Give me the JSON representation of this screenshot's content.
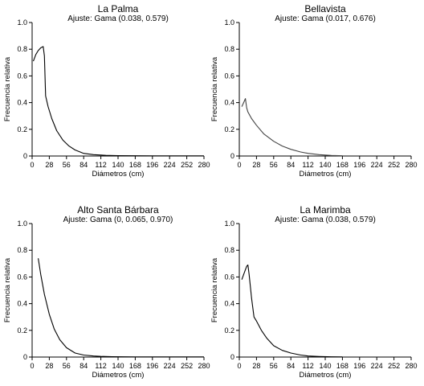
{
  "chart_data": [
    {
      "type": "line",
      "title": "La Palma",
      "subtitle": "Ajuste: Gama (0.038, 0.579)",
      "xlabel": "Diámetros (cm)",
      "ylabel": "Frecuencia relativa",
      "xlim": [
        0,
        280
      ],
      "ylim": [
        0,
        1.0
      ],
      "xticks": [
        0,
        28,
        56,
        84,
        112,
        140,
        168,
        196,
        224,
        252,
        280
      ],
      "yticks": [
        0,
        0.2,
        0.4,
        0.6,
        0.8,
        1.0
      ],
      "ytick_labels": [
        "0",
        "0.2",
        "0.4",
        "0.6",
        "0.8",
        "1.0"
      ],
      "grid": false,
      "series": [
        {
          "color": "#000000",
          "x": [
            2,
            6,
            10,
            14,
            18,
            20,
            22,
            26,
            32,
            40,
            50,
            60,
            70,
            84,
            100,
            120,
            140,
            168,
            200,
            240,
            280
          ],
          "y": [
            0.71,
            0.76,
            0.79,
            0.81,
            0.82,
            0.75,
            0.45,
            0.37,
            0.28,
            0.19,
            0.12,
            0.075,
            0.045,
            0.02,
            0.01,
            0.005,
            0.003,
            0.002,
            0.001,
            0.001,
            0.001
          ]
        }
      ]
    },
    {
      "type": "line",
      "title": "Bellavista",
      "subtitle": "Ajuste: Gama (0.017, 0.676)",
      "xlabel": "Diámetros (cm)",
      "ylabel": "Frecuencia relativa",
      "xlim": [
        0,
        280
      ],
      "ylim": [
        0,
        1.0
      ],
      "xticks": [
        0,
        28,
        56,
        84,
        112,
        140,
        168,
        196,
        224,
        252,
        280
      ],
      "yticks": [
        0,
        0.2,
        0.4,
        0.6,
        0.8,
        1.0
      ],
      "ytick_labels": [
        "0",
        "0.2",
        "0.4",
        "0.6",
        "0.8",
        "1.0"
      ],
      "grid": false,
      "series": [
        {
          "color": "#444444",
          "x": [
            4,
            7,
            10,
            12,
            14,
            20,
            28,
            40,
            56,
            70,
            84,
            100,
            112,
            130,
            150,
            168
          ],
          "y": [
            0.37,
            0.4,
            0.43,
            0.36,
            0.33,
            0.28,
            0.23,
            0.165,
            0.11,
            0.075,
            0.05,
            0.03,
            0.02,
            0.01,
            0.004,
            0.002
          ]
        }
      ]
    },
    {
      "type": "line",
      "title": "Alto Santa Bárbara",
      "subtitle": "Ajuste: Gama (0, 0.065, 0.970)",
      "xlabel": "Diámetros (cm)",
      "ylabel": "Frecuencia relativa",
      "xlim": [
        0,
        280
      ],
      "ylim": [
        0,
        1.0
      ],
      "xticks": [
        0,
        28,
        56,
        84,
        112,
        140,
        168,
        196,
        224,
        252,
        280
      ],
      "yticks": [
        0,
        0.2,
        0.4,
        0.6,
        0.8,
        1.0
      ],
      "ytick_labels": [
        "0",
        "0.2",
        "0.4",
        "0.6",
        "0.8",
        "1.0"
      ],
      "grid": false,
      "series": [
        {
          "color": "#000000",
          "x": [
            10,
            14,
            20,
            28,
            36,
            45,
            56,
            70,
            84,
            100,
            112,
            130,
            150,
            168,
            196,
            224,
            252,
            280
          ],
          "y": [
            0.74,
            0.62,
            0.47,
            0.32,
            0.21,
            0.13,
            0.07,
            0.03,
            0.015,
            0.008,
            0.005,
            0.003,
            0.002,
            0.001,
            0.001,
            0.001,
            0.001,
            0.001
          ]
        }
      ]
    },
    {
      "type": "line",
      "title": "La Marimba",
      "subtitle": "Ajuste: Gama (0.038, 0.579)",
      "xlabel": "Diámetros (cm)",
      "ylabel": "Frecuencia relativa",
      "xlim": [
        0,
        280
      ],
      "ylim": [
        0,
        1.0
      ],
      "xticks": [
        0,
        28,
        56,
        84,
        112,
        140,
        168,
        196,
        224,
        252,
        280
      ],
      "yticks": [
        0,
        0.2,
        0.4,
        0.6,
        0.8,
        1.0
      ],
      "ytick_labels": [
        "0",
        "0.2",
        "0.4",
        "0.6",
        "0.8",
        "1.0"
      ],
      "grid": false,
      "series": [
        {
          "color": "#000000",
          "x": [
            4,
            8,
            12,
            14,
            16,
            20,
            24,
            28,
            36,
            45,
            56,
            70,
            84,
            100,
            112,
            130,
            150,
            168
          ],
          "y": [
            0.58,
            0.63,
            0.68,
            0.69,
            0.62,
            0.44,
            0.3,
            0.27,
            0.2,
            0.14,
            0.085,
            0.05,
            0.03,
            0.015,
            0.008,
            0.004,
            0.002,
            0.001
          ]
        }
      ]
    }
  ]
}
